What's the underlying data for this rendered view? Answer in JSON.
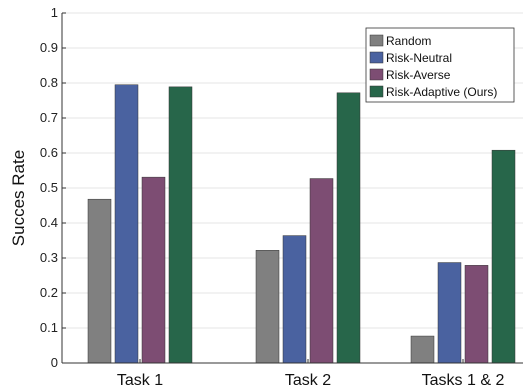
{
  "chart_data": {
    "type": "bar",
    "title": "",
    "xlabel": "",
    "ylabel": "Succes Rate",
    "ylim": [
      0,
      1
    ],
    "yticks": [
      0,
      0.1,
      0.2,
      0.3,
      0.4,
      0.5,
      0.6,
      0.7,
      0.8,
      0.9,
      1
    ],
    "ytick_labels": [
      "0",
      "0.1",
      "0.2",
      "0.3",
      "0.4",
      "0.5",
      "0.6",
      "0.7",
      "0.8",
      "0.9",
      "1"
    ],
    "grid": true,
    "legend_position": "top-right",
    "categories": [
      "Task 1",
      "Task 2",
      "Tasks 1 & 2"
    ],
    "series": [
      {
        "name": "Random",
        "color": "#808080",
        "values": [
          0.468,
          0.322,
          0.077
        ]
      },
      {
        "name": "Risk-Neutral",
        "color": "#4a62a0",
        "values": [
          0.795,
          0.364,
          0.287
        ]
      },
      {
        "name": "Risk-Averse",
        "color": "#7d4d73",
        "values": [
          0.531,
          0.527,
          0.279
        ]
      },
      {
        "name": "Risk-Adaptive (Ours)",
        "color": "#27664a",
        "values": [
          0.789,
          0.772,
          0.608
        ]
      }
    ]
  }
}
